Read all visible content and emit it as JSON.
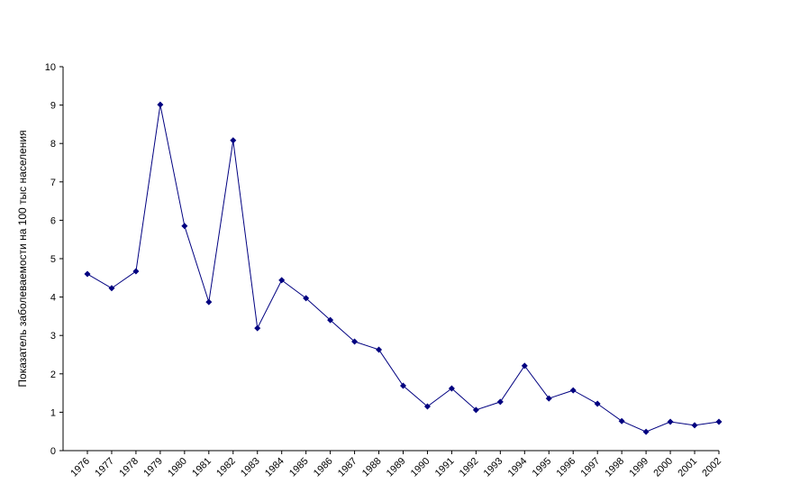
{
  "chart_data": {
    "type": "line",
    "y_label": "Показатель заболеваемости на 100 тыс населения",
    "categories": [
      "1976",
      "1977",
      "1978",
      "1979",
      "1980",
      "1981",
      "1982",
      "1983",
      "1984",
      "1985",
      "1986",
      "1987",
      "1988",
      "1989",
      "1990",
      "1991",
      "1992",
      "1993",
      "1994",
      "1995",
      "1996",
      "1997",
      "1998",
      "1999",
      "2000",
      "2001",
      "2002"
    ],
    "series": [
      {
        "color": "#000080",
        "values": [
          4.6,
          4.23,
          4.67,
          9.01,
          5.85,
          3.87,
          8.08,
          3.19,
          4.44,
          3.97,
          3.4,
          2.84,
          2.63,
          1.69,
          1.15,
          1.62,
          1.06,
          1.27,
          2.21,
          1.36,
          1.57,
          1.22,
          0.77,
          0.49,
          0.75,
          0.66,
          0.75
        ]
      }
    ],
    "ylim": [
      0,
      10
    ],
    "yticks": [
      0,
      1,
      2,
      3,
      4,
      5,
      6,
      7,
      8,
      9,
      10
    ],
    "grid": false
  }
}
